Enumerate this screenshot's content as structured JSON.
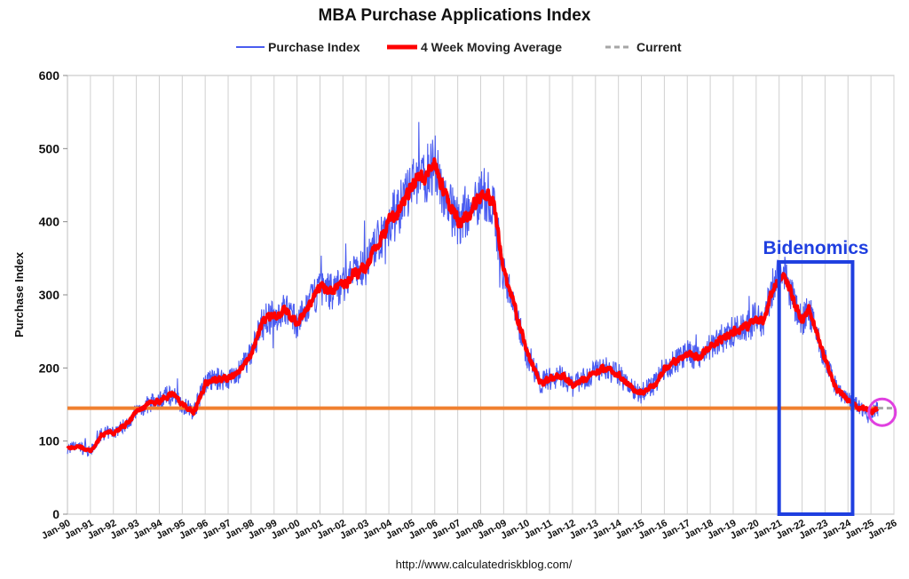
{
  "chart_data": {
    "type": "line",
    "title": "MBA Purchase Applications Index",
    "ylabel": "Purchase Index",
    "xlabel": "",
    "source": "http://www.calculatedriskblog.com/",
    "ylim": [
      0,
      600
    ],
    "yticks": [
      "0",
      "100",
      "200",
      "300",
      "400",
      "500",
      "600"
    ],
    "xlim": [
      1990,
      2026
    ],
    "xticks": [
      "Jan-90",
      "Jan-91",
      "Jan-92",
      "Jan-93",
      "Jan-94",
      "Jan-95",
      "Jan-96",
      "Jan-97",
      "Jan-98",
      "Jan-99",
      "Jan-00",
      "Jan-01",
      "Jan-02",
      "Jan-03",
      "Jan-04",
      "Jan-05",
      "Jan-06",
      "Jan-07",
      "Jan-08",
      "Jan-09",
      "Jan-10",
      "Jan-11",
      "Jan-12",
      "Jan-13",
      "Jan-14",
      "Jan-15",
      "Jan-16",
      "Jan-17",
      "Jan-18",
      "Jan-19",
      "Jan-20",
      "Jan-21",
      "Jan-22",
      "Jan-23",
      "Jan-24",
      "Jan-25",
      "Jan-26"
    ],
    "grid": "vertical",
    "legend_position": "top",
    "legend": [
      {
        "name": "Purchase Index",
        "color": "#4a5cf0",
        "style": "thin"
      },
      {
        "name": "4 Week Moving Average",
        "color": "#ff0000",
        "style": "thick"
      },
      {
        "name": "Current",
        "color": "#a6a6a6",
        "style": "dashed"
      }
    ],
    "series": [
      {
        "name": "4 Week Moving Average",
        "color": "#ff0000",
        "x": [
          1990.0,
          1990.5,
          1991.0,
          1991.5,
          1992.0,
          1992.5,
          1993.0,
          1993.5,
          1994.0,
          1994.5,
          1995.0,
          1995.5,
          1996.0,
          1996.5,
          1997.0,
          1997.5,
          1998.0,
          1998.5,
          1999.0,
          1999.5,
          2000.0,
          2000.5,
          2001.0,
          2001.5,
          2002.0,
          2002.5,
          2003.0,
          2003.5,
          2004.0,
          2004.5,
          2005.0,
          2005.5,
          2006.0,
          2006.5,
          2007.0,
          2007.5,
          2008.0,
          2008.5,
          2009.0,
          2009.5,
          2010.0,
          2010.3,
          2010.6,
          2011.0,
          2011.5,
          2012.0,
          2012.5,
          2013.0,
          2013.5,
          2014.0,
          2014.5,
          2015.0,
          2015.5,
          2016.0,
          2016.5,
          2017.0,
          2017.5,
          2018.0,
          2018.5,
          2019.0,
          2019.5,
          2020.0,
          2020.3,
          2020.6,
          2021.0,
          2021.2,
          2021.5,
          2022.0,
          2022.3,
          2022.6,
          2023.0,
          2023.5,
          2024.0,
          2024.5,
          2025.0,
          2025.3
        ],
        "values": [
          90,
          93,
          85,
          110,
          112,
          122,
          140,
          150,
          155,
          165,
          150,
          140,
          180,
          185,
          185,
          195,
          220,
          265,
          270,
          280,
          260,
          285,
          310,
          305,
          315,
          330,
          340,
          370,
          400,
          420,
          450,
          460,
          480,
          430,
          400,
          410,
          440,
          430,
          330,
          280,
          220,
          200,
          180,
          185,
          190,
          175,
          185,
          195,
          200,
          190,
          175,
          165,
          175,
          200,
          210,
          220,
          215,
          230,
          240,
          250,
          255,
          270,
          260,
          300,
          325,
          330,
          300,
          265,
          280,
          250,
          210,
          170,
          155,
          145,
          140,
          145
        ]
      },
      {
        "name": "Current",
        "color": "#a6a6a6",
        "x": [
          2025.3,
          2025.95
        ],
        "values": [
          145,
          145
        ]
      }
    ],
    "annotations": [
      {
        "type": "hline",
        "y": 145,
        "x": [
          1990,
          2025.3
        ],
        "color": "#f08030"
      },
      {
        "type": "box",
        "label": "Bidenomics",
        "x": [
          2021.0,
          2024.2
        ],
        "y": [
          0,
          345
        ],
        "color": "#1f3fe0"
      },
      {
        "type": "circle",
        "x": 2025.45,
        "y": 143,
        "color": "#e040e0"
      }
    ]
  }
}
